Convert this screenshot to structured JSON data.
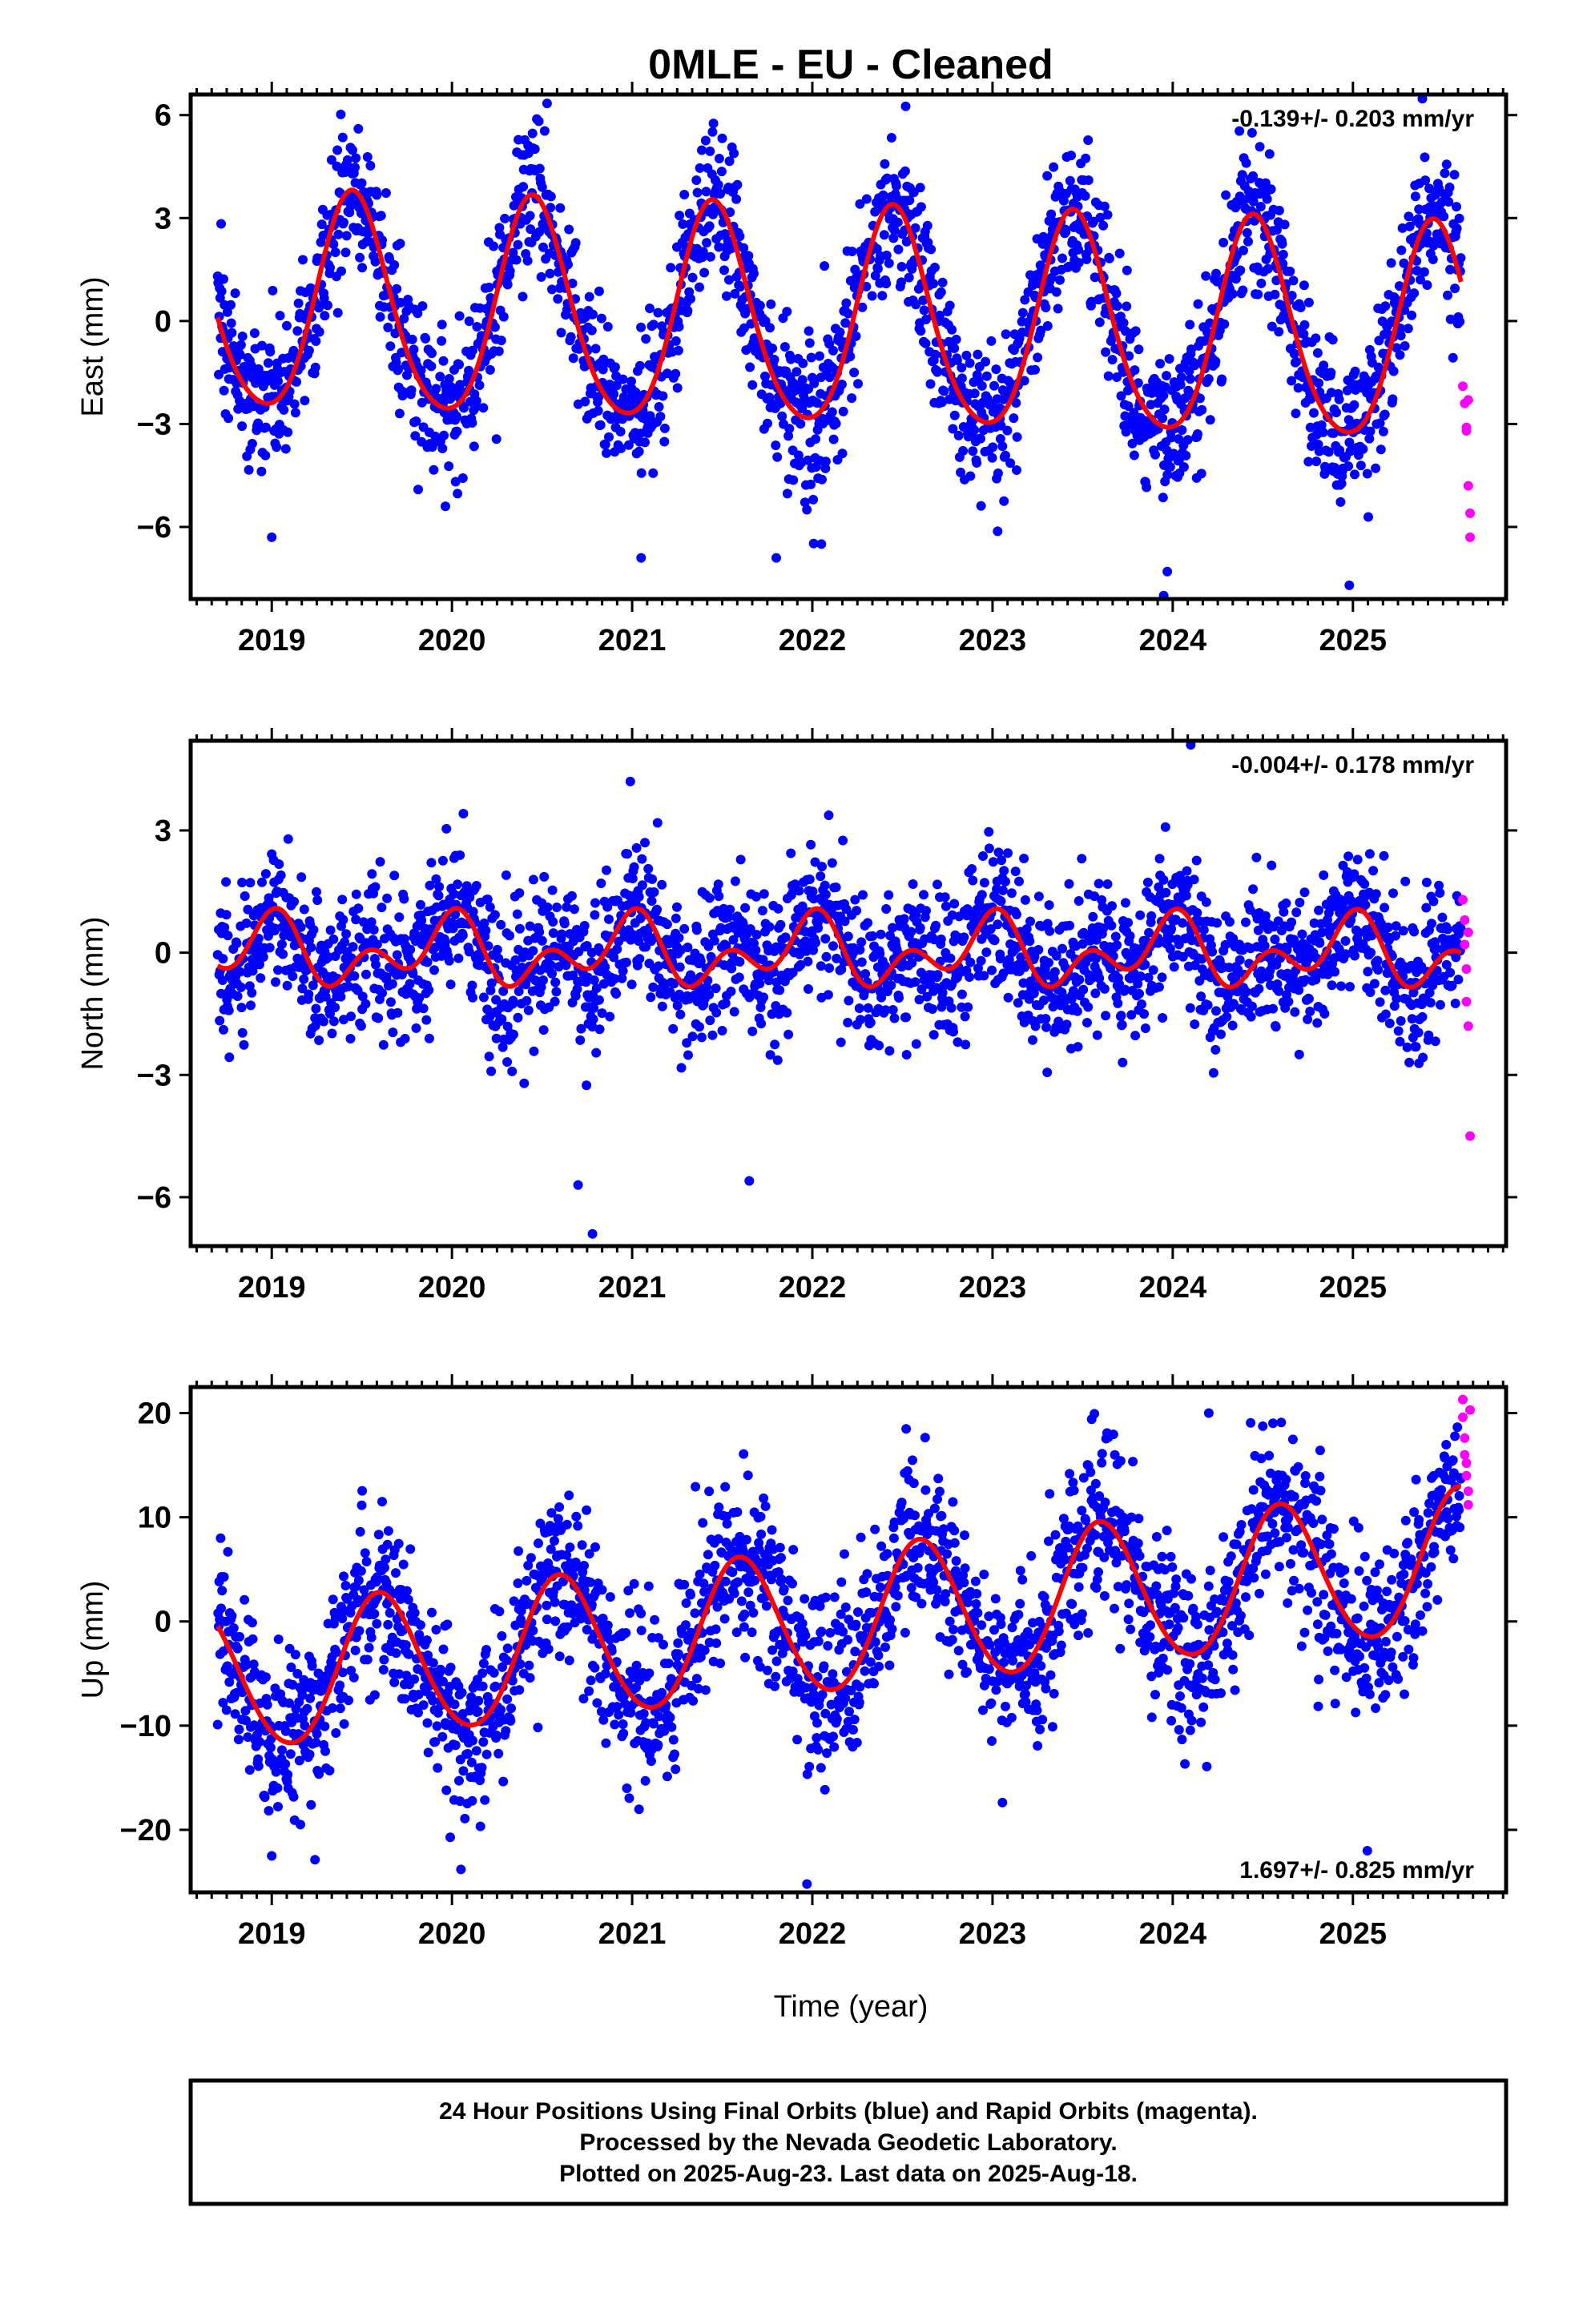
{
  "title": "0MLE  - EU - Cleaned",
  "xlabel": "Time (year)",
  "footer": {
    "lines": [
      "24 Hour Positions Using Final Orbits (blue) and Rapid Orbits (magenta).",
      "Processed by the Nevada Geodetic Laboratory.",
      "Plotted on 2025-Aug-23. Last data on 2025-Aug-18."
    ]
  },
  "colors": {
    "final_orbits": "#0000ff",
    "rapid_orbits": "#ff00ff",
    "model_fit": "#ff0000"
  },
  "chart_data": [
    {
      "type": "scatter",
      "name": "east",
      "ylabel": "East (mm)",
      "rate_label": "-0.139+/- 0.203 mm/yr",
      "rate_position": "top-right",
      "xlim": [
        2018.55,
        2025.85
      ],
      "ylim": [
        -8.1,
        6.6
      ],
      "x_ticks": [
        2019,
        2020,
        2021,
        2022,
        2023,
        2024,
        2025
      ],
      "x_tick_labels": [
        "2019",
        "2020",
        "2021",
        "2022",
        "2023",
        "2024",
        "2025"
      ],
      "y_ticks": [
        6,
        3,
        0,
        -3,
        -6
      ],
      "y_tick_labels": [
        "6",
        "3",
        "0",
        "−3",
        "−6"
      ],
      "model": {
        "trend": -0.139,
        "annual_cos": -3.0,
        "annual_sin": 0.9,
        "semiannual_cos": 0.25,
        "semiannual_sin": -0.3,
        "offset_at_2022": -0.05
      },
      "final_orbits": {
        "x_start": 2018.7,
        "x_end": 2025.6,
        "step": 0.0027,
        "scatter_sd": 1.1,
        "outliers": [
          [
            2019.0,
            -6.3
          ],
          [
            2021.05,
            -6.9
          ],
          [
            2021.8,
            -6.9
          ],
          [
            2022.05,
            -6.5
          ],
          [
            2023.95,
            -8.0
          ],
          [
            2023.97,
            -7.3
          ],
          [
            2024.98,
            -7.7
          ]
        ]
      },
      "rapid_orbits": {
        "points": [
          [
            2025.61,
            -1.9
          ],
          [
            2025.62,
            -2.4
          ],
          [
            2025.63,
            -3.1
          ],
          [
            2025.63,
            -3.2
          ],
          [
            2025.64,
            -2.3
          ],
          [
            2025.64,
            -4.8
          ],
          [
            2025.65,
            -5.6
          ],
          [
            2025.65,
            -6.3
          ]
        ]
      }
    },
    {
      "type": "scatter",
      "name": "north",
      "ylabel": "North (mm)",
      "rate_label": "-0.004+/- 0.178 mm/yr",
      "rate_position": "top-right",
      "xlim": [
        2018.55,
        2025.85
      ],
      "ylim": [
        -7.2,
        5.2
      ],
      "x_ticks": [
        2019,
        2020,
        2021,
        2022,
        2023,
        2024,
        2025
      ],
      "x_tick_labels": [
        "2019",
        "2020",
        "2021",
        "2022",
        "2023",
        "2024",
        "2025"
      ],
      "y_ticks": [
        3,
        0,
        -3,
        -6
      ],
      "y_tick_labels": [
        "3",
        "0",
        "−3",
        "−6"
      ],
      "model": {
        "trend": -0.004,
        "annual_cos": 0.55,
        "annual_sin": -0.1,
        "semiannual_cos": 0.5,
        "semiannual_sin": 0.25,
        "offset_at_2022": 0.0
      },
      "final_orbits": {
        "x_start": 2018.7,
        "x_end": 2025.6,
        "step": 0.0027,
        "scatter_sd": 0.9,
        "outliers": [
          [
            2020.7,
            -5.7
          ],
          [
            2020.78,
            -6.9
          ],
          [
            2021.65,
            -5.6
          ],
          [
            2024.1,
            5.1
          ],
          [
            2020.99,
            4.2
          ]
        ]
      },
      "rapid_orbits": {
        "points": [
          [
            2025.61,
            1.3
          ],
          [
            2025.62,
            0.8
          ],
          [
            2025.62,
            0.2
          ],
          [
            2025.63,
            -0.4
          ],
          [
            2025.63,
            -1.2
          ],
          [
            2025.64,
            -1.8
          ],
          [
            2025.64,
            0.5
          ],
          [
            2025.65,
            -4.5
          ]
        ]
      }
    },
    {
      "type": "scatter",
      "name": "up",
      "ylabel": "Up (mm)",
      "rate_label": "1.697+/- 0.825 mm/yr",
      "rate_position": "bottom-right",
      "xlim": [
        2018.55,
        2025.85
      ],
      "ylim": [
        -26.0,
        22.5
      ],
      "x_ticks": [
        2019,
        2020,
        2021,
        2022,
        2023,
        2024,
        2025
      ],
      "x_tick_labels": [
        "2019",
        "2020",
        "2021",
        "2022",
        "2023",
        "2024",
        "2025"
      ],
      "y_ticks": [
        20,
        10,
        0,
        -10,
        -20
      ],
      "y_tick_labels": [
        "20",
        "10",
        "0",
        "−10",
        "−20"
      ],
      "model": {
        "trend": 1.697,
        "annual_cos": -5.5,
        "annual_sin": -4.0,
        "semiannual_cos": 0.3,
        "semiannual_sin": 0.3,
        "offset_at_2022": -0.3
      },
      "final_orbits": {
        "x_start": 2018.7,
        "x_end": 2025.6,
        "step": 0.0027,
        "scatter_sd": 4.0,
        "outliers": [
          [
            2021.97,
            -25.2
          ],
          [
            2020.05,
            -23.8
          ],
          [
            2019.0,
            -22.5
          ],
          [
            2025.08,
            -22.0
          ],
          [
            2024.2,
            20.0
          ],
          [
            2023.55,
            19.4
          ]
        ]
      },
      "rapid_orbits": {
        "points": [
          [
            2025.61,
            21.3
          ],
          [
            2025.61,
            19.6
          ],
          [
            2025.62,
            17.6
          ],
          [
            2025.62,
            16.0
          ],
          [
            2025.63,
            15.2
          ],
          [
            2025.63,
            14.0
          ],
          [
            2025.64,
            12.5
          ],
          [
            2025.64,
            11.2
          ],
          [
            2025.65,
            20.3
          ]
        ]
      }
    }
  ]
}
